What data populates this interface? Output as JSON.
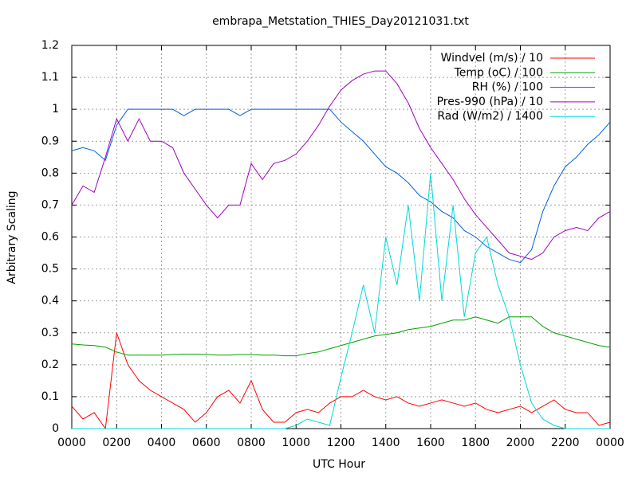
{
  "chart_data": {
    "type": "line",
    "title": "embrapa_Metstation_THIES_Day20121031.txt",
    "x_label": "UTC Hour",
    "y_label": "Arbitrary Scaling",
    "x": [
      0,
      0.5,
      1,
      1.5,
      2,
      2.5,
      3,
      3.5,
      4,
      4.5,
      5,
      5.5,
      6,
      6.5,
      7,
      7.5,
      8,
      8.5,
      9,
      9.5,
      10,
      10.5,
      11,
      11.5,
      12,
      12.5,
      13,
      13.5,
      14,
      14.5,
      15,
      15.5,
      16,
      16.5,
      17,
      17.5,
      18,
      18.5,
      19,
      19.5,
      20,
      20.5,
      21,
      21.5,
      22,
      22.5,
      23,
      23.5,
      24
    ],
    "xlim": [
      0,
      24
    ],
    "xticks": [
      {
        "value": 0,
        "label": "0000"
      },
      {
        "value": 2,
        "label": "0200"
      },
      {
        "value": 4,
        "label": "0400"
      },
      {
        "value": 6,
        "label": "0600"
      },
      {
        "value": 8,
        "label": "0800"
      },
      {
        "value": 10,
        "label": "1000"
      },
      {
        "value": 12,
        "label": "1200"
      },
      {
        "value": 14,
        "label": "1400"
      },
      {
        "value": 16,
        "label": "1600"
      },
      {
        "value": 18,
        "label": "1800"
      },
      {
        "value": 20,
        "label": "2000"
      },
      {
        "value": 22,
        "label": "2200"
      },
      {
        "value": 24,
        "label": "0000"
      }
    ],
    "ylim": [
      0,
      1.2
    ],
    "yticks": [
      0,
      0.1,
      0.2,
      0.3,
      0.4,
      0.5,
      0.6,
      0.7,
      0.8,
      0.9,
      1,
      1.1,
      1.2
    ],
    "grid": true,
    "legend": "top-right",
    "series": [
      {
        "name": "Windvel (m/s) / 10",
        "color": "#ff0000",
        "values": [
          0.07,
          0.03,
          0.05,
          0.0,
          0.3,
          0.2,
          0.15,
          0.12,
          0.1,
          0.08,
          0.06,
          0.02,
          0.05,
          0.1,
          0.12,
          0.08,
          0.15,
          0.06,
          0.02,
          0.02,
          0.05,
          0.06,
          0.05,
          0.08,
          0.1,
          0.1,
          0.12,
          0.1,
          0.09,
          0.1,
          0.08,
          0.07,
          0.08,
          0.09,
          0.08,
          0.07,
          0.08,
          0.06,
          0.05,
          0.06,
          0.07,
          0.05,
          0.07,
          0.09,
          0.06,
          0.05,
          0.05,
          0.01,
          0.02
        ]
      },
      {
        "name": "Temp (oC) / 100",
        "color": "#00a000",
        "values": [
          0.265,
          0.262,
          0.26,
          0.255,
          0.24,
          0.23,
          0.23,
          0.23,
          0.23,
          0.232,
          0.233,
          0.233,
          0.232,
          0.23,
          0.23,
          0.232,
          0.232,
          0.23,
          0.23,
          0.228,
          0.228,
          0.235,
          0.24,
          0.25,
          0.26,
          0.27,
          0.28,
          0.29,
          0.295,
          0.3,
          0.31,
          0.315,
          0.32,
          0.33,
          0.34,
          0.34,
          0.35,
          0.34,
          0.33,
          0.35,
          0.35,
          0.35,
          0.32,
          0.3,
          0.29,
          0.28,
          0.27,
          0.26,
          0.255
        ]
      },
      {
        "name": "RH (%) / 100",
        "color": "#0060e0",
        "values": [
          0.87,
          0.88,
          0.87,
          0.84,
          0.95,
          1.0,
          1.0,
          1.0,
          1.0,
          1.0,
          0.98,
          1.0,
          1.0,
          1.0,
          1.0,
          0.98,
          1.0,
          1.0,
          1.0,
          1.0,
          1.0,
          1.0,
          1.0,
          1.0,
          0.96,
          0.93,
          0.9,
          0.86,
          0.82,
          0.8,
          0.77,
          0.73,
          0.71,
          0.68,
          0.66,
          0.62,
          0.6,
          0.57,
          0.55,
          0.53,
          0.52,
          0.56,
          0.68,
          0.76,
          0.82,
          0.85,
          0.89,
          0.92,
          0.96
        ]
      },
      {
        "name": "Pres-990 (hPa) / 10",
        "color": "#a000c0",
        "values": [
          0.7,
          0.76,
          0.74,
          0.85,
          0.97,
          0.9,
          0.97,
          0.9,
          0.9,
          0.88,
          0.8,
          0.75,
          0.7,
          0.66,
          0.7,
          0.7,
          0.83,
          0.78,
          0.83,
          0.84,
          0.86,
          0.9,
          0.95,
          1.01,
          1.06,
          1.09,
          1.11,
          1.12,
          1.12,
          1.08,
          1.02,
          0.94,
          0.88,
          0.83,
          0.78,
          0.72,
          0.67,
          0.63,
          0.59,
          0.55,
          0.54,
          0.53,
          0.55,
          0.6,
          0.62,
          0.63,
          0.62,
          0.66,
          0.68
        ]
      },
      {
        "name": "Rad (W/m2) / 1400",
        "color": "#00d8d8",
        "values": [
          0,
          0,
          0,
          0,
          0,
          0,
          0,
          0,
          0,
          0,
          0,
          0,
          0,
          0,
          0,
          0,
          0,
          0,
          0,
          0,
          0.01,
          0.03,
          0.02,
          0.01,
          0.16,
          0.3,
          0.45,
          0.3,
          0.6,
          0.45,
          0.7,
          0.4,
          0.8,
          0.4,
          0.7,
          0.35,
          0.55,
          0.6,
          0.45,
          0.35,
          0.2,
          0.08,
          0.03,
          0.01,
          0,
          0,
          0,
          0,
          0
        ]
      }
    ]
  }
}
